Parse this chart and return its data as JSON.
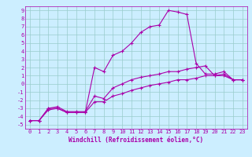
{
  "xlabel": "Windchill (Refroidissement éolien,°C)",
  "xlim": [
    -0.5,
    23.5
  ],
  "ylim": [
    -5.5,
    9.5
  ],
  "xticks": [
    0,
    1,
    2,
    3,
    4,
    5,
    6,
    7,
    8,
    9,
    10,
    11,
    12,
    13,
    14,
    15,
    16,
    17,
    18,
    19,
    20,
    21,
    22,
    23
  ],
  "yticks": [
    -5,
    -4,
    -3,
    -2,
    -1,
    0,
    1,
    2,
    3,
    4,
    5,
    6,
    7,
    8,
    9
  ],
  "bg_color": "#cceeff",
  "line_color": "#aa00aa",
  "grid_color": "#99cccc",
  "line1_x": [
    0,
    1,
    2,
    3,
    4,
    5,
    6,
    7,
    8,
    9,
    10,
    11,
    12,
    13,
    14,
    15,
    16,
    17,
    18,
    19,
    20,
    21,
    22,
    23
  ],
  "line1_y": [
    -4.5,
    -4.5,
    -3.0,
    -3.0,
    -3.5,
    -3.5,
    -3.5,
    2.0,
    1.5,
    3.5,
    4.0,
    5.0,
    6.3,
    7.0,
    7.2,
    9.0,
    8.8,
    8.5,
    2.5,
    1.2,
    1.2,
    1.5,
    0.5,
    0.5
  ],
  "line2_x": [
    0,
    1,
    2,
    3,
    4,
    5,
    6,
    7,
    8,
    9,
    10,
    11,
    12,
    13,
    14,
    15,
    16,
    17,
    18,
    19,
    20,
    21,
    22,
    23
  ],
  "line2_y": [
    -4.5,
    -4.5,
    -3.0,
    -2.8,
    -3.4,
    -3.4,
    -3.4,
    -1.5,
    -1.8,
    -0.5,
    0.0,
    0.5,
    0.8,
    1.0,
    1.2,
    1.5,
    1.5,
    1.8,
    2.0,
    2.2,
    1.0,
    1.0,
    0.5,
    0.5
  ],
  "line3_x": [
    0,
    1,
    2,
    3,
    4,
    5,
    6,
    7,
    8,
    9,
    10,
    11,
    12,
    13,
    14,
    15,
    16,
    17,
    18,
    19,
    20,
    21,
    22,
    23
  ],
  "line3_y": [
    -4.5,
    -4.5,
    -3.2,
    -3.0,
    -3.5,
    -3.5,
    -3.5,
    -2.2,
    -2.2,
    -1.5,
    -1.2,
    -0.8,
    -0.5,
    -0.2,
    0.0,
    0.2,
    0.5,
    0.5,
    0.7,
    1.0,
    1.0,
    1.2,
    0.5,
    0.5
  ],
  "tick_fontsize": 5,
  "xlabel_fontsize": 5.5,
  "lw": 0.8,
  "marker_size": 3
}
